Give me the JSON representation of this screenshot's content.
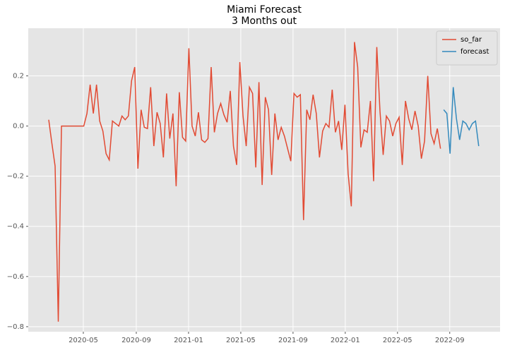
{
  "chart_data": {
    "type": "line",
    "title": "Miami Forecast",
    "subtitle": "3 Months out",
    "xlim": [
      -6.43,
      141.7
    ],
    "xticks": [
      {
        "value": 10.86,
        "label": "2020-05"
      },
      {
        "value": 27.49,
        "label": "2020-09"
      },
      {
        "value": 43.9,
        "label": "2021-01"
      },
      {
        "value": 60.3,
        "label": "2021-05"
      },
      {
        "value": 76.7,
        "label": "2021-09"
      },
      {
        "value": 93.1,
        "label": "2022-01"
      },
      {
        "value": 109.5,
        "label": "2022-05"
      },
      {
        "value": 125.9,
        "label": "2022-09"
      }
    ],
    "ylim": [
      -0.82,
      0.39
    ],
    "yticks": [
      {
        "value": -0.8,
        "label": "−0.8"
      },
      {
        "value": -0.6,
        "label": "−0.6"
      },
      {
        "value": -0.4,
        "label": "−0.4"
      },
      {
        "value": -0.2,
        "label": "−0.2"
      },
      {
        "value": 0,
        "label": "0.0"
      },
      0.2
    ],
    "grid": true,
    "legend": "upper right",
    "series": [
      {
        "name": "so_far",
        "color": "#E24A33",
        "values": [
          0.025,
          -0.07,
          -0.16,
          -0.78,
          0,
          0,
          0,
          0,
          0,
          0,
          0,
          0,
          0.05,
          0.165,
          0.05,
          0.165,
          0.02,
          -0.02,
          -0.11,
          -0.135,
          0.02,
          0.01,
          0,
          0.04,
          0.025,
          0.04,
          0.18,
          0.235,
          -0.17,
          0.065,
          -0.005,
          -0.01,
          0.155,
          -0.08,
          0.055,
          0.01,
          -0.125,
          0.13,
          -0.05,
          0.05,
          -0.24,
          0.135,
          -0.045,
          -0.06,
          0.31,
          0,
          -0.04,
          0.055,
          -0.055,
          -0.065,
          -0.05,
          0.235,
          -0.025,
          0.05,
          0.09,
          0.045,
          0.015,
          0.14,
          -0.08,
          -0.155,
          0.255,
          0.04,
          -0.08,
          0.155,
          0.13,
          -0.165,
          0.175,
          -0.235,
          0.115,
          0.065,
          -0.195,
          0.05,
          -0.055,
          -0.005,
          -0.04,
          -0.09,
          -0.14,
          0.13,
          0.115,
          0.125,
          -0.375,
          0.065,
          0.025,
          0.125,
          0.05,
          -0.125,
          -0.02,
          0.01,
          -0.005,
          0.145,
          -0.025,
          0.02,
          -0.095,
          0.085,
          -0.19,
          -0.32,
          0.335,
          0.235,
          -0.085,
          -0.015,
          -0.025,
          0.1,
          -0.22,
          0.315,
          0.06,
          -0.115,
          0.04,
          0.02,
          -0.04,
          0.01,
          0.035,
          -0.155,
          0.1,
          0.03,
          -0.015,
          0.06,
          0,
          -0.13,
          -0.06,
          0.2,
          -0.03,
          -0.07,
          -0.01,
          -0.09,
          null,
          null,
          null,
          null,
          null,
          null,
          null,
          null,
          null,
          null,
          null,
          null
        ]
      },
      {
        "name": "forecast",
        "color": "#348ABD",
        "values": [
          null,
          null,
          null,
          null,
          null,
          null,
          null,
          null,
          null,
          null,
          null,
          null,
          null,
          null,
          null,
          null,
          null,
          null,
          null,
          null,
          null,
          null,
          null,
          null,
          null,
          null,
          null,
          null,
          null,
          null,
          null,
          null,
          null,
          null,
          null,
          null,
          null,
          null,
          null,
          null,
          null,
          null,
          null,
          null,
          null,
          null,
          null,
          null,
          null,
          null,
          null,
          null,
          null,
          null,
          null,
          null,
          null,
          null,
          null,
          null,
          null,
          null,
          null,
          null,
          null,
          null,
          null,
          null,
          null,
          null,
          null,
          null,
          null,
          null,
          null,
          null,
          null,
          null,
          null,
          null,
          null,
          null,
          null,
          null,
          null,
          null,
          null,
          null,
          null,
          null,
          null,
          null,
          null,
          null,
          null,
          null,
          null,
          null,
          null,
          null,
          null,
          null,
          null,
          null,
          null,
          null,
          null,
          null,
          null,
          null,
          null,
          null,
          null,
          null,
          null,
          null,
          null,
          null,
          null,
          null,
          null,
          null,
          null,
          null,
          0.065,
          0.05,
          -0.11,
          0.155,
          0.03,
          -0.055,
          0.02,
          0.01,
          -0.015,
          0.01,
          0.02,
          -0.08
        ]
      }
    ]
  }
}
